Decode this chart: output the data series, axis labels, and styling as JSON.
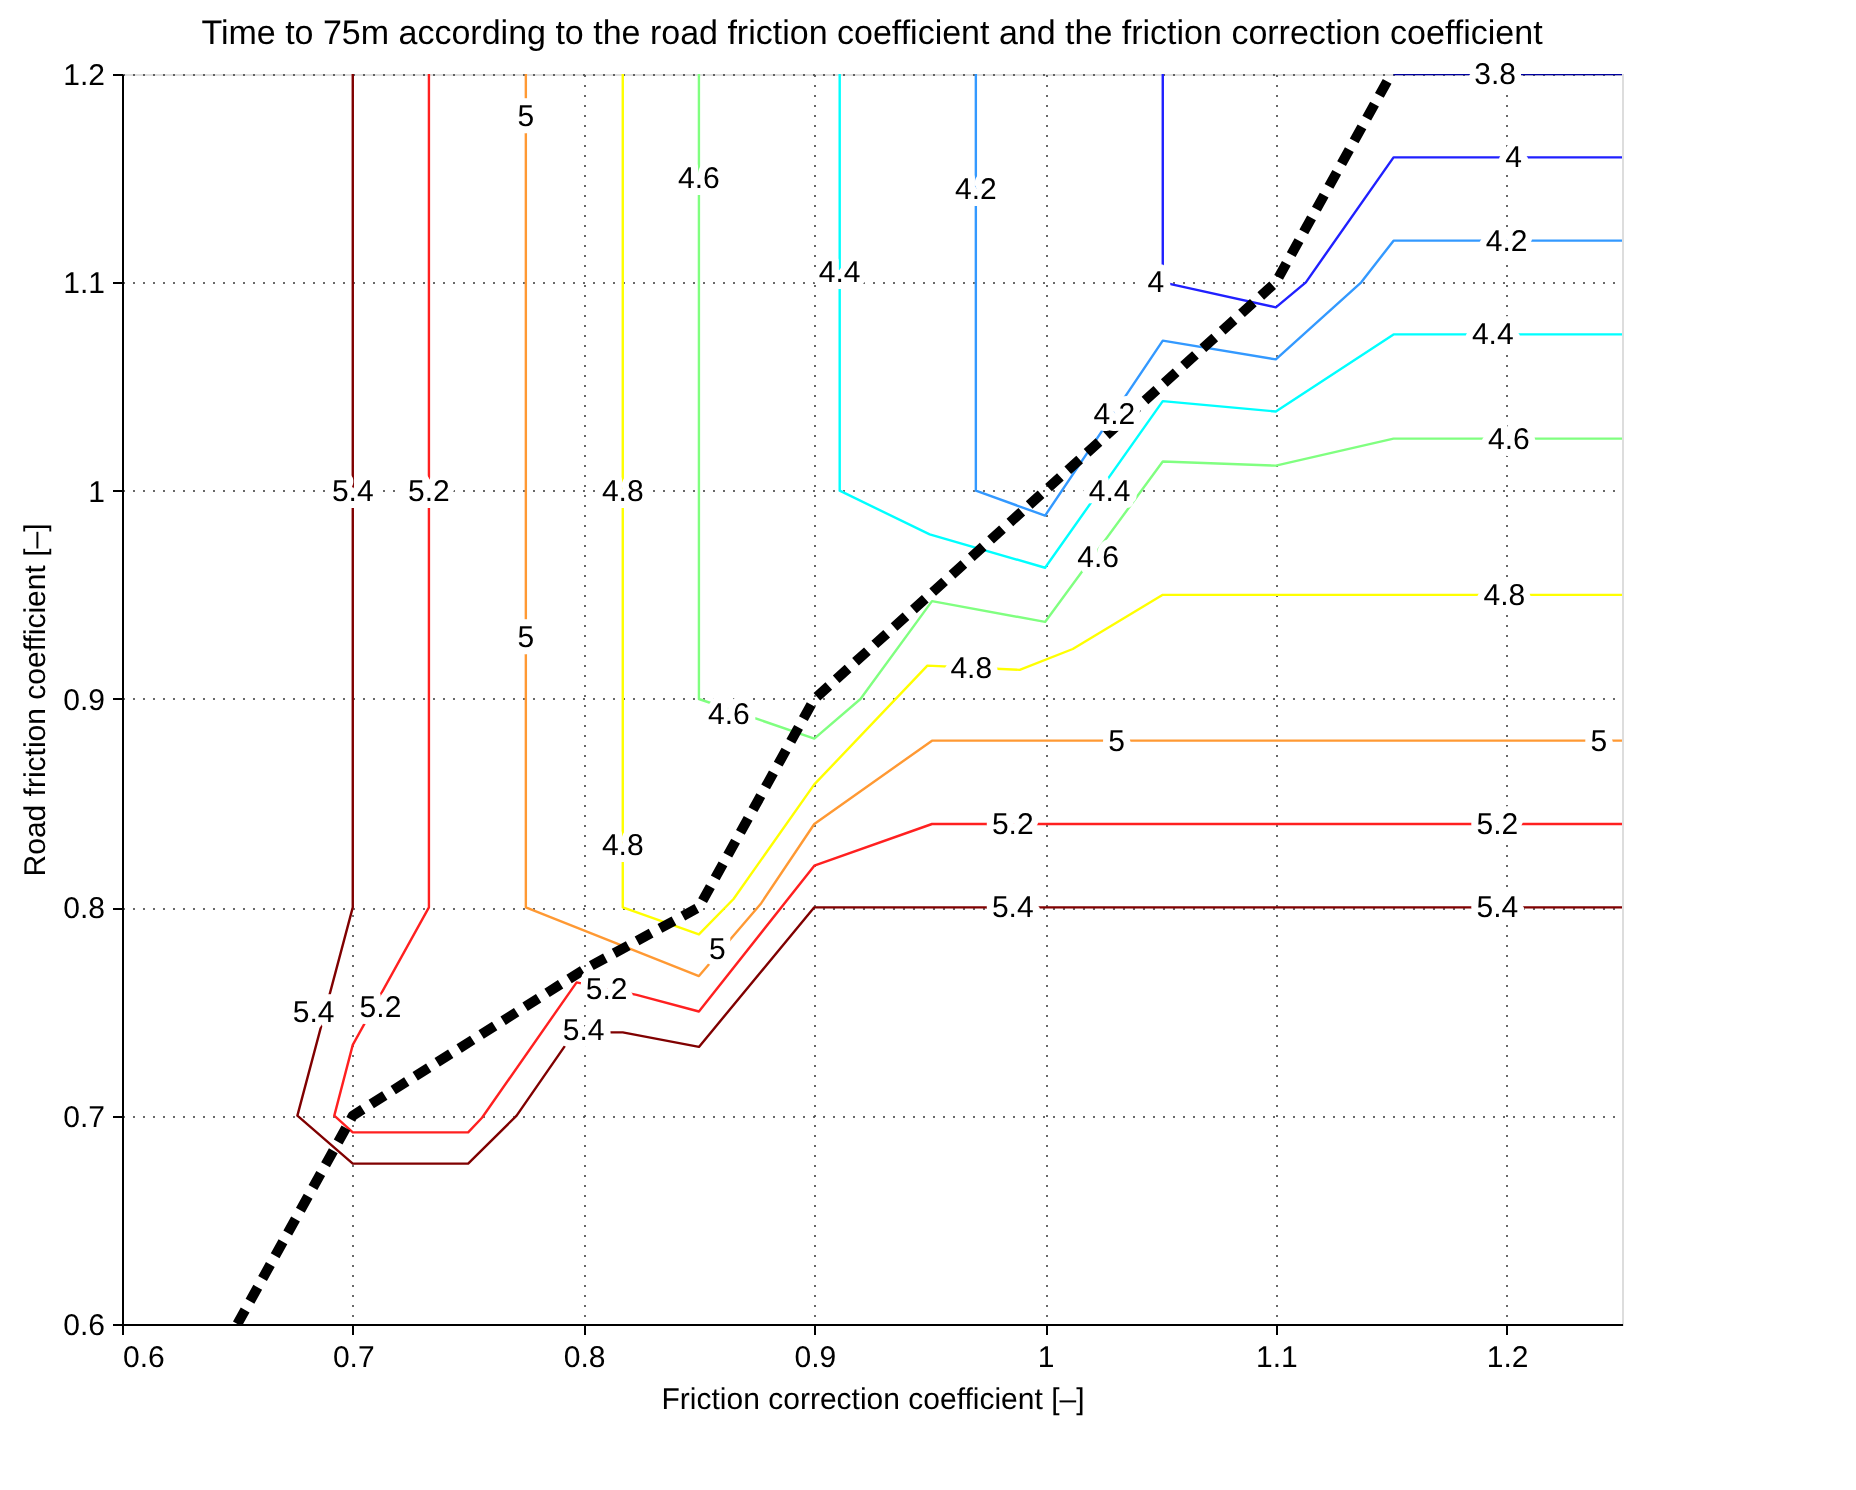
{
  "chart_data": {
    "type": "line",
    "title": "Time to 75m according to the road friction coefficient and the friction correction coefficient",
    "xlabel": "Friction correction coefficient [–]",
    "ylabel": "Road friction coefficient [–]",
    "xlim": [
      0.6,
      1.25
    ],
    "ylim": [
      0.6,
      1.2
    ],
    "xticks": [
      0.6,
      0.7,
      0.8,
      0.9,
      1,
      1.1,
      1.2
    ],
    "yticks": [
      0.6,
      0.7,
      0.8,
      0.9,
      1,
      1.1,
      1.2
    ],
    "grid": true,
    "marker": "none",
    "series": [
      {
        "color": "#800000",
        "x": [
          0.7,
          0.7,
          0.676,
          0.7,
          0.75,
          0.771,
          0.796,
          0.817,
          0.85,
          0.9,
          1.25
        ],
        "values": [
          1.2,
          0.8,
          0.7,
          0.677,
          0.677,
          0.7,
          0.74,
          0.74,
          0.733,
          0.8,
          0.8
        ]
      },
      {
        "color": "#ff2020",
        "x": [
          0.733,
          0.733,
          0.7,
          0.692,
          0.7,
          0.75,
          0.756,
          0.797,
          0.823,
          0.85,
          0.9,
          0.951,
          1.25
        ],
        "values": [
          1.2,
          0.8,
          0.734,
          0.7,
          0.692,
          0.692,
          0.699,
          0.764,
          0.758,
          0.75,
          0.82,
          0.84,
          0.84
        ]
      },
      {
        "color": "#ff9933",
        "x": [
          0.775,
          0.775,
          0.85,
          0.877,
          0.9,
          0.951,
          1.25
        ],
        "values": [
          1.2,
          0.8,
          0.767,
          0.802,
          0.84,
          0.88,
          0.88
        ]
      },
      {
        "color": "#ffff00",
        "x": [
          0.817,
          0.817,
          0.85,
          0.865,
          0.9,
          0.949,
          0.989,
          1.012,
          1.051,
          1.25
        ],
        "values": [
          1.2,
          0.8,
          0.787,
          0.804,
          0.859,
          0.916,
          0.914,
          0.924,
          0.95,
          0.95
        ]
      },
      {
        "color": "#80ff80",
        "x": [
          0.85,
          0.85,
          0.9,
          0.92,
          0.951,
          1.0,
          1.051,
          1.1,
          1.151,
          1.25
        ],
        "values": [
          1.2,
          0.9,
          0.881,
          0.9,
          0.947,
          0.937,
          1.014,
          1.012,
          1.025,
          1.025
        ]
      },
      {
        "color": "#00ffff",
        "x": [
          0.911,
          0.911,
          0.95,
          1.0,
          1.051,
          1.1,
          1.151,
          1.25
        ],
        "values": [
          1.2,
          1.0,
          0.979,
          0.963,
          1.043,
          1.038,
          1.075,
          1.075
        ]
      },
      {
        "color": "#3399ff",
        "x": [
          0.97,
          0.97,
          1.0,
          1.051,
          1.1,
          1.137,
          1.151,
          1.25
        ],
        "values": [
          1.2,
          1.0,
          0.988,
          1.072,
          1.063,
          1.1,
          1.12,
          1.12
        ]
      },
      {
        "color": "#2020ff",
        "x": [
          1.051,
          1.051,
          1.1,
          1.113,
          1.151,
          1.25
        ],
        "values": [
          1.2,
          1.1,
          1.088,
          1.1,
          1.16,
          1.16
        ]
      },
      {
        "color": "#0000a0",
        "x": [
          1.151,
          1.25
        ],
        "values": [
          1.2,
          1.2
        ]
      },
      {
        "color": "#000000",
        "line_style": "dashed",
        "x": [
          0.65,
          0.7,
          0.8,
          0.85,
          0.9,
          1.0,
          1.1,
          1.15
        ],
        "values": [
          0.6,
          0.7,
          0.77,
          0.8,
          0.9,
          1.0,
          1.1,
          1.2
        ]
      }
    ],
    "annotations": [
      {
        "text": "5.4",
        "x": 0.7,
        "y": 1.0
      },
      {
        "text": "5.4",
        "x": 0.683,
        "y": 0.75
      },
      {
        "text": "5.4",
        "x": 0.8,
        "y": 0.741
      },
      {
        "text": "5.4",
        "x": 0.986,
        "y": 0.8
      },
      {
        "text": "5.4",
        "x": 1.196,
        "y": 0.8
      },
      {
        "text": "5.2",
        "x": 0.733,
        "y": 1.0
      },
      {
        "text": "5.2",
        "x": 0.712,
        "y": 0.752
      },
      {
        "text": "5.2",
        "x": 0.81,
        "y": 0.761
      },
      {
        "text": "5.2",
        "x": 0.986,
        "y": 0.84
      },
      {
        "text": "5.2",
        "x": 1.196,
        "y": 0.84
      },
      {
        "text": "5",
        "x": 0.775,
        "y": 1.18
      },
      {
        "text": "5",
        "x": 0.775,
        "y": 0.93
      },
      {
        "text": "5",
        "x": 0.858,
        "y": 0.78
      },
      {
        "text": "5",
        "x": 1.031,
        "y": 0.88
      },
      {
        "text": "5",
        "x": 1.24,
        "y": 0.88
      },
      {
        "text": "4.8",
        "x": 0.817,
        "y": 1.0
      },
      {
        "text": "4.8",
        "x": 0.817,
        "y": 0.83
      },
      {
        "text": "4.8",
        "x": 0.968,
        "y": 0.915
      },
      {
        "text": "4.8",
        "x": 1.199,
        "y": 0.95
      },
      {
        "text": "4.6",
        "x": 0.85,
        "y": 1.15
      },
      {
        "text": "4.6",
        "x": 0.863,
        "y": 0.893
      },
      {
        "text": "4.6",
        "x": 1.023,
        "y": 0.968
      },
      {
        "text": "4.6",
        "x": 1.201,
        "y": 1.025
      },
      {
        "text": "4.4",
        "x": 0.911,
        "y": 1.105
      },
      {
        "text": "4.4",
        "x": 1.028,
        "y": 1.0
      },
      {
        "text": "4.4",
        "x": 1.194,
        "y": 1.075
      },
      {
        "text": "4.2",
        "x": 0.97,
        "y": 1.145
      },
      {
        "text": "4.2",
        "x": 1.03,
        "y": 1.037
      },
      {
        "text": "4.2",
        "x": 1.2,
        "y": 1.12
      },
      {
        "text": "4",
        "x": 1.048,
        "y": 1.1
      },
      {
        "text": "4",
        "x": 1.203,
        "y": 1.16
      },
      {
        "text": "3.8",
        "x": 1.195,
        "y": 1.2
      }
    ]
  }
}
